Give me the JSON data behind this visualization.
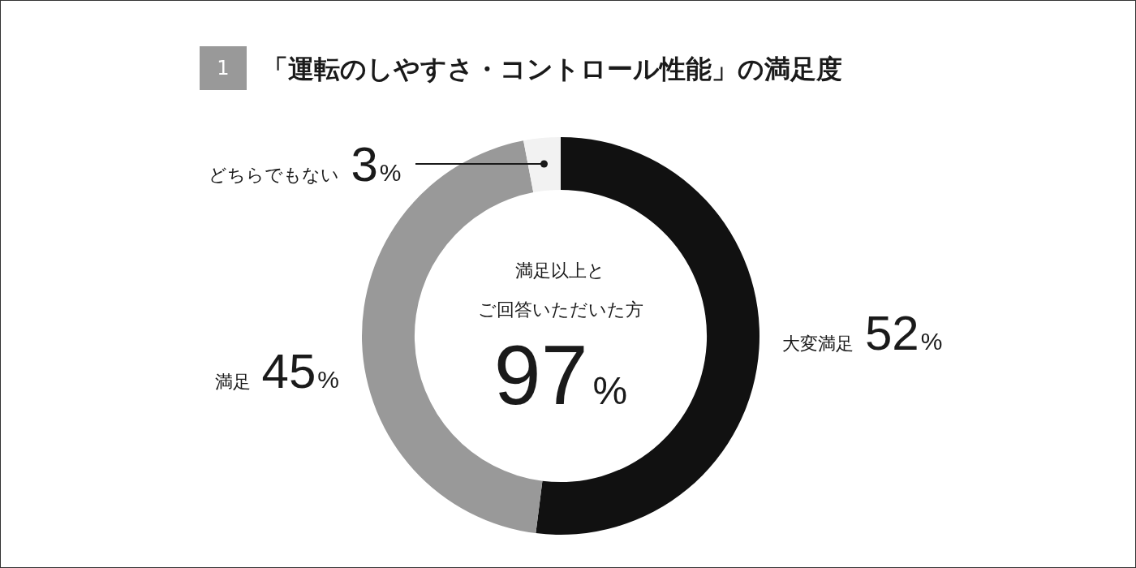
{
  "chart_data": {
    "type": "donut",
    "title": "「運転のしやすさ・コントロール性能」の満足度",
    "categories": [
      "大変満足",
      "満足",
      "どちらでもない"
    ],
    "values": [
      52,
      45,
      3
    ],
    "colors": [
      "#111111",
      "#999999",
      "#f2f2f2"
    ],
    "value_labels": [
      "52%",
      "45%",
      "3%"
    ],
    "annotations": [
      "1",
      "満足以上と",
      "ご回答いただいた方",
      "97%"
    ]
  }
}
